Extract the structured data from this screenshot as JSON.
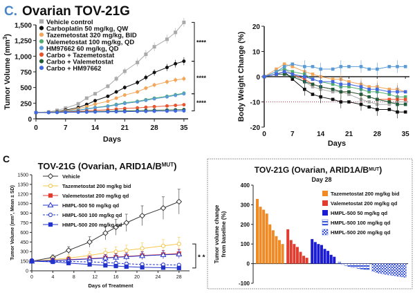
{
  "panel_top_letter": "C.",
  "panel_bottom_letter": "C",
  "chart_data": [
    {
      "id": "top_left",
      "type": "line",
      "title": "Ovarian TOV-21G",
      "xlabel": "Days",
      "ylabel": "Tumor Volume (mm",
      "ylabel_sup": "3",
      "ylabel_tail": ")",
      "xlim": [
        0,
        36
      ],
      "ylim": [
        0,
        1500
      ],
      "xticks": [
        0,
        7,
        14,
        21,
        28,
        35
      ],
      "yticks": [
        0,
        250,
        500,
        750,
        1000,
        1250,
        1500
      ],
      "ytick_labels": [
        "0",
        "250",
        "500",
        "750",
        "1,000",
        "1,250",
        "1,500"
      ],
      "x": [
        0,
        3,
        5,
        7,
        10,
        12,
        14,
        17,
        19,
        21,
        24,
        26,
        28,
        31,
        33,
        35
      ],
      "series": [
        {
          "name": "Vehicle control",
          "color": "#aaaaaa",
          "marker": "square",
          "values": [
            100,
            110,
            135,
            170,
            240,
            330,
            400,
            520,
            640,
            760,
            900,
            1030,
            1150,
            1270,
            1380,
            1540
          ]
        },
        {
          "name": "Carboplatin 50 mg/kg, QW",
          "color": "#111111",
          "marker": "circle",
          "values": [
            100,
            105,
            115,
            140,
            180,
            230,
            290,
            360,
            430,
            500,
            580,
            660,
            740,
            820,
            880,
            920
          ]
        },
        {
          "name": "Tazemetostat 320 mg/kg, BID",
          "color": "#f2a65a",
          "marker": "circle",
          "values": [
            100,
            104,
            112,
            128,
            160,
            195,
            235,
            280,
            330,
            380,
            430,
            490,
            540,
            590,
            620,
            640
          ]
        },
        {
          "name": "Valemetostat 100 mg/kg, QD",
          "color": "#4fae6e",
          "marker": "circle",
          "values": [
            100,
            103,
            108,
            120,
            140,
            160,
            180,
            205,
            230,
            255,
            280,
            305,
            330,
            360,
            385,
            410
          ]
        },
        {
          "name": "HM97662 60 mg/kg, QD",
          "color": "#5b9bd5",
          "marker": "circle",
          "values": [
            100,
            103,
            107,
            118,
            138,
            155,
            175,
            198,
            220,
            245,
            270,
            295,
            320,
            350,
            375,
            400
          ]
        },
        {
          "name": "Carbo + Tazemetostat",
          "color": "#e8542f",
          "marker": "circle",
          "values": [
            100,
            102,
            105,
            110,
            118,
            125,
            135,
            145,
            155,
            165,
            175,
            185,
            195,
            205,
            215,
            225
          ]
        },
        {
          "name": "Carbo + Valemetostat",
          "color": "#1f5b3a",
          "marker": "circle",
          "values": [
            100,
            101,
            103,
            106,
            110,
            113,
            116,
            120,
            123,
            126,
            130,
            134,
            137,
            141,
            144,
            148
          ]
        },
        {
          "name": "Carbo + HM97662",
          "color": "#4169e1",
          "marker": "circle",
          "values": [
            100,
            100,
            101,
            103,
            105,
            107,
            109,
            111,
            113,
            115,
            117,
            119,
            121,
            123,
            125,
            127
          ]
        }
      ],
      "significance": [
        "****",
        "****",
        "****"
      ]
    },
    {
      "id": "top_right",
      "type": "line",
      "title": "",
      "xlabel": "Days",
      "ylabel": "Body Weight Change (%)",
      "xlim": [
        0,
        36
      ],
      "ylim": [
        -20,
        20
      ],
      "xticks": [
        0,
        7,
        14,
        21,
        28,
        35
      ],
      "yticks": [
        -20,
        -10,
        0,
        10,
        20
      ],
      "reference_line": -10,
      "x": [
        0,
        3,
        5,
        7,
        10,
        12,
        14,
        17,
        19,
        21,
        24,
        26,
        28,
        31,
        33,
        35
      ],
      "series": [
        {
          "name": "Vehicle control",
          "color": "#aaaaaa",
          "values": [
            0,
            2,
            3,
            1,
            -2,
            -4,
            -5,
            -6,
            -6,
            -7,
            -9,
            -10,
            -11,
            -11,
            -10,
            -10
          ]
        },
        {
          "name": "Carboplatin 50 mg/kg, QW",
          "color": "#111111",
          "values": [
            0,
            1,
            2,
            -1,
            -5,
            -7,
            -8,
            -9,
            -10,
            -10,
            -11,
            -12,
            -13,
            -13,
            -14,
            -14
          ]
        },
        {
          "name": "Tazemetostat 320 mg/kg, BID",
          "color": "#f2a65a",
          "values": [
            0,
            3,
            5,
            4,
            2,
            1,
            0,
            -1,
            -1,
            -2,
            -3,
            -4,
            -4,
            -5,
            -5,
            -6
          ]
        },
        {
          "name": "Valemetostat 100 mg/kg, QD",
          "color": "#4fae6e",
          "values": [
            0,
            2,
            3,
            2,
            1,
            -1,
            -2,
            -3,
            -4,
            -4,
            -5,
            -6,
            -6,
            -7,
            -8,
            -8
          ]
        },
        {
          "name": "HM97662 60 mg/kg, QD",
          "color": "#5b9bd5",
          "values": [
            0,
            2,
            4,
            5,
            4,
            4,
            3,
            3,
            4,
            4,
            4,
            3,
            3,
            4,
            4,
            4
          ]
        },
        {
          "name": "Carbo + Tazemetostat",
          "color": "#e8542f",
          "values": [
            0,
            1,
            2,
            1,
            -1,
            -3,
            -4,
            -5,
            -6,
            -6,
            -7,
            -8,
            -9,
            -9,
            -9,
            -9
          ]
        },
        {
          "name": "Carbo + Valemetostat",
          "color": "#1f5b3a",
          "values": [
            0,
            1,
            1,
            0,
            -2,
            -3,
            -4,
            -5,
            -6,
            -6,
            -7,
            -8,
            -9,
            -10,
            -11,
            -11
          ]
        },
        {
          "name": "Carbo + HM97662",
          "color": "#4169e1",
          "values": [
            0,
            1,
            2,
            1,
            0,
            -1,
            -2,
            -2,
            -3,
            -3,
            -4,
            -5,
            -5,
            -6,
            -6,
            -6
          ]
        }
      ]
    },
    {
      "id": "bottom_left",
      "type": "line",
      "title": "TOV-21G (Ovarian, ARID1A/B",
      "title_sup": "MUT",
      "title_tail": ")",
      "xlabel": "Days of Treatment",
      "ylabel": "Tumor Volume (mm³, Mean ± SD)",
      "xlim": [
        0,
        30
      ],
      "ylim": [
        0,
        1500
      ],
      "xticks": [
        0,
        4,
        8,
        12,
        16,
        20,
        24,
        28
      ],
      "yticks": [
        0,
        150,
        300,
        450,
        600,
        750,
        900,
        1050,
        1200,
        1350,
        1500
      ],
      "x": [
        0,
        4,
        7,
        11,
        14,
        16,
        18,
        21,
        25,
        28
      ],
      "series": [
        {
          "name": "Vehicle",
          "color": "#333333",
          "marker": "diamond",
          "fill": "none",
          "values": [
            150,
            210,
            320,
            450,
            590,
            680,
            750,
            860,
            980,
            1080
          ]
        },
        {
          "name": "Tazemetostat 200 mg/kg bid",
          "color": "#f5c64a",
          "marker": "circle",
          "fill": "none",
          "values": [
            150,
            175,
            200,
            240,
            280,
            300,
            320,
            350,
            390,
            420
          ]
        },
        {
          "name": "Valemetostat 200 mg/kg qd",
          "color": "#e03c2f",
          "marker": "square",
          "fill": "filled",
          "values": [
            150,
            160,
            175,
            190,
            205,
            215,
            225,
            240,
            255,
            270
          ]
        },
        {
          "name": "HMPL-500 50 mg/kg qd",
          "color": "#2233cc",
          "marker": "triangle",
          "fill": "none",
          "dash": false,
          "values": [
            150,
            160,
            170,
            185,
            200,
            210,
            220,
            235,
            250,
            260
          ]
        },
        {
          "name": "HMPL-500 100 mg/kg qd",
          "color": "#2233cc",
          "marker": "circle",
          "fill": "none",
          "dash": true,
          "values": [
            150,
            150,
            145,
            140,
            130,
            120,
            110,
            100,
            95,
            90
          ]
        },
        {
          "name": "HMPL-500 200 mg/kg qd",
          "color": "#2233cc",
          "marker": "square",
          "fill": "filled",
          "dash": false,
          "values": [
            150,
            140,
            120,
            100,
            85,
            75,
            65,
            55,
            50,
            45
          ]
        }
      ],
      "significance": "* *"
    },
    {
      "id": "bottom_right",
      "type": "bar",
      "title": "TOV-21G (Ovarian, ARID1A/B",
      "title_sup": "MUT",
      "title_tail": ")",
      "subtitle": "Day 28",
      "ylabel_line1": "Tumor volume change",
      "ylabel_line2": "from baseline (%)",
      "ylim": [
        -100,
        400
      ],
      "yticks": [
        -100,
        0,
        100,
        200,
        300,
        400
      ],
      "legend": [
        {
          "name": "Tazemetostat 200 mg/kg bid",
          "color": "#f08a24",
          "pattern": false
        },
        {
          "name": "Valemetostat 200 mg/kg qd",
          "color": "#e03c2f",
          "pattern": false
        },
        {
          "name": "HMPL-500 50 mg/kg qd",
          "color": "#1b1bd6",
          "pattern": false
        },
        {
          "name": "HMPL-500 100 mg/kg qd",
          "color": "#5a6ee6",
          "pattern": true
        },
        {
          "name": "HMPL-500 200 mg/kg qd",
          "color": "#3f52d9",
          "pattern": true
        }
      ],
      "groups": [
        {
          "name": "Tazemetostat 200 mg/kg bid",
          "color": "#f08a24",
          "pattern": "solid",
          "values": [
            330,
            290,
            275,
            255,
            200,
            170,
            140,
            120,
            100
          ]
        },
        {
          "name": "Valemetostat 200 mg/kg qd",
          "color": "#e03c2f",
          "pattern": "solid",
          "values": [
            175,
            120,
            100,
            85,
            60,
            40,
            30
          ]
        },
        {
          "name": "HMPL-500 50 mg/kg qd",
          "color": "#1b1bd6",
          "pattern": "solid",
          "values": [
            125,
            110,
            100,
            95,
            75,
            65,
            45,
            35
          ]
        },
        {
          "name": "HMPL-500 100 mg/kg qd",
          "color": "#5a6ee6",
          "pattern": "stripe",
          "values": [
            10,
            -5,
            -10,
            -15,
            -20,
            -22,
            -25,
            -28,
            -30,
            -32
          ]
        },
        {
          "name": "HMPL-500 200 mg/kg qd",
          "color": "#3f52d9",
          "pattern": "check",
          "values": [
            -40,
            -45,
            -50,
            -52,
            -55,
            -58,
            -60,
            -62,
            -65,
            -68,
            -70
          ]
        }
      ]
    }
  ]
}
